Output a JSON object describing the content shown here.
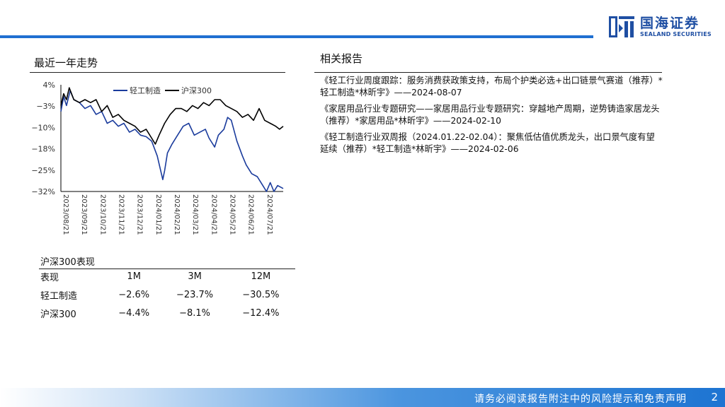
{
  "brand": {
    "name_cn": "国海证券",
    "name_en": "SEALAND SECURITIES",
    "color": "#1f4fa3"
  },
  "left": {
    "chart_title": "最近一年走势",
    "perf_title": "沪深300表现",
    "perf_table": {
      "headers": [
        "表现",
        "1M",
        "3M",
        "12M"
      ],
      "rows": [
        [
          "轻工制造",
          "−2.6%",
          "−23.7%",
          "−30.5%"
        ],
        [
          "沪深300",
          "−4.4%",
          "−8.1%",
          "−12.4%"
        ]
      ]
    }
  },
  "right": {
    "title": "相关报告",
    "reports": [
      "《轻工行业周度跟踪：服务消费获政策支持，布局个护类必选+出口链景气赛道（推荐）*轻工制造*林昕宇》——2024-08-07",
      "《家居用品行业专题研究——家居用品行业专题研究：穿越地产周期，逆势铸造家居龙头（推荐）*家居用品*林昕宇》——2024-02-10",
      "《轻工制造行业双周报（2024.01.22-02.04）：聚焦低估值优质龙头，出口景气度有望延续（推荐）*轻工制造*林昕宇》——2024-02-06"
    ]
  },
  "footer": {
    "text": "请务必阅读报告附注中的风险提示和免责声明",
    "page": "2"
  },
  "chart_data": {
    "type": "line",
    "title": "",
    "xlabel": "",
    "ylabel": "",
    "y_ticks": [
      "4%",
      "−3%",
      "−10%",
      "−18%",
      "−25%",
      "−32%"
    ],
    "ylim": [
      -32,
      4
    ],
    "x_ticks": [
      "2023/08/21",
      "2023/09/21",
      "2023/10/21",
      "2023/11/21",
      "2023/12/21",
      "2024/01/21",
      "2024/02/21",
      "2024/03/21",
      "2024/04/21",
      "2024/05/21",
      "2024/06/21",
      "2024/07/21"
    ],
    "xlim": [
      0,
      12
    ],
    "legend_position": "top",
    "series": [
      {
        "name": "轻工制造",
        "color": "#1a3b9c",
        "points": [
          [
            0,
            -5
          ],
          [
            0.15,
            0
          ],
          [
            0.3,
            -3
          ],
          [
            0.5,
            2
          ],
          [
            0.7,
            -1
          ],
          [
            1,
            -2
          ],
          [
            1.3,
            -4
          ],
          [
            1.6,
            -3
          ],
          [
            1.9,
            -6
          ],
          [
            2.2,
            -5
          ],
          [
            2.5,
            -9
          ],
          [
            2.8,
            -8
          ],
          [
            3.1,
            -10
          ],
          [
            3.4,
            -9
          ],
          [
            3.7,
            -12
          ],
          [
            4,
            -11
          ],
          [
            4.3,
            -13
          ],
          [
            4.6,
            -13.5
          ],
          [
            4.9,
            -15
          ],
          [
            5.2,
            -20
          ],
          [
            5.35,
            -24
          ],
          [
            5.5,
            -28
          ],
          [
            5.6,
            -25
          ],
          [
            5.75,
            -19
          ],
          [
            6,
            -16
          ],
          [
            6.3,
            -13
          ],
          [
            6.6,
            -10
          ],
          [
            6.9,
            -9
          ],
          [
            7.2,
            -13
          ],
          [
            7.5,
            -12
          ],
          [
            7.8,
            -11
          ],
          [
            8,
            -14
          ],
          [
            8.3,
            -17
          ],
          [
            8.5,
            -13
          ],
          [
            8.8,
            -11
          ],
          [
            9,
            -7
          ],
          [
            9.2,
            -8
          ],
          [
            9.5,
            -15
          ],
          [
            9.8,
            -20
          ],
          [
            10,
            -23
          ],
          [
            10.3,
            -26
          ],
          [
            10.6,
            -27
          ],
          [
            10.9,
            -30
          ],
          [
            11.1,
            -32
          ],
          [
            11.3,
            -29
          ],
          [
            11.5,
            -32
          ],
          [
            11.7,
            -30
          ],
          [
            12,
            -31
          ]
        ]
      },
      {
        "name": "沪深300",
        "color": "#000000",
        "points": [
          [
            0,
            -3
          ],
          [
            0.15,
            1
          ],
          [
            0.3,
            -1
          ],
          [
            0.45,
            3
          ],
          [
            0.7,
            -1
          ],
          [
            1,
            -2
          ],
          [
            1.3,
            -1
          ],
          [
            1.6,
            -2
          ],
          [
            1.9,
            -1
          ],
          [
            2.2,
            -5
          ],
          [
            2.5,
            -3
          ],
          [
            2.8,
            -7
          ],
          [
            3.1,
            -6
          ],
          [
            3.4,
            -8
          ],
          [
            3.7,
            -9
          ],
          [
            4,
            -10
          ],
          [
            4.3,
            -12
          ],
          [
            4.6,
            -11
          ],
          [
            4.9,
            -14
          ],
          [
            5.1,
            -16
          ],
          [
            5.3,
            -13
          ],
          [
            5.6,
            -9
          ],
          [
            5.9,
            -6
          ],
          [
            6.2,
            -4
          ],
          [
            6.5,
            -4
          ],
          [
            6.8,
            -5
          ],
          [
            7.1,
            -3
          ],
          [
            7.4,
            -4
          ],
          [
            7.7,
            -2
          ],
          [
            8,
            -3
          ],
          [
            8.3,
            -1
          ],
          [
            8.6,
            -1
          ],
          [
            8.9,
            -3
          ],
          [
            9.2,
            -4
          ],
          [
            9.5,
            -5
          ],
          [
            9.8,
            -7
          ],
          [
            10.1,
            -6
          ],
          [
            10.4,
            -8
          ],
          [
            10.7,
            -4
          ],
          [
            11,
            -8
          ],
          [
            11.3,
            -9
          ],
          [
            11.6,
            -10
          ],
          [
            11.8,
            -11
          ],
          [
            12,
            -10
          ]
        ]
      }
    ]
  }
}
